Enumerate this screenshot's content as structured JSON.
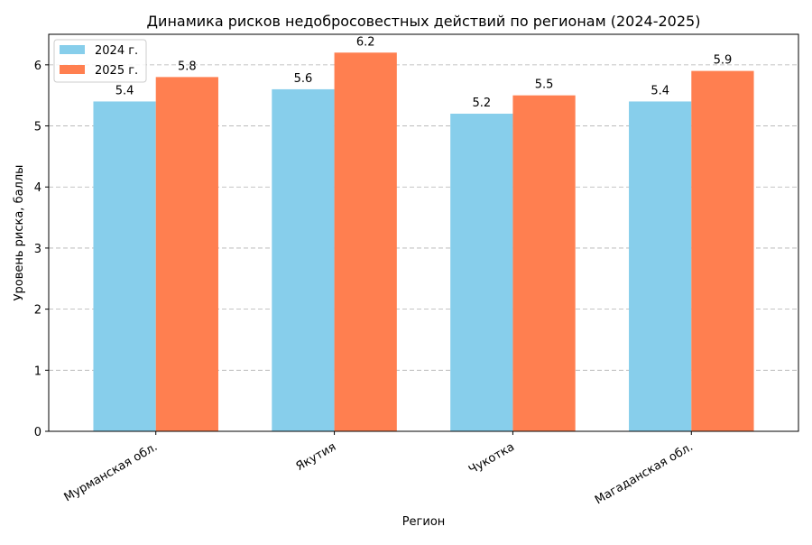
{
  "chart_data": {
    "type": "bar",
    "title": "Динамика рисков недобросовестных действий по регионам (2024-2025)",
    "xlabel": "Регион",
    "ylabel": "Уровень риска, баллы",
    "categories": [
      "Мурманская обл.",
      "Якутия",
      "Чукотка",
      "Магаданская обл."
    ],
    "series": [
      {
        "name": "2024 г.",
        "values": [
          5.4,
          5.6,
          5.2,
          5.4
        ],
        "color": "#87CEEB"
      },
      {
        "name": "2025 г.",
        "values": [
          5.8,
          6.2,
          5.5,
          5.9
        ],
        "color": "#FF7F50"
      }
    ],
    "ylim": [
      0,
      6.5
    ],
    "yticks": [
      0,
      1,
      2,
      3,
      4,
      5,
      6
    ],
    "grid": true,
    "legend_position": "top-left"
  }
}
